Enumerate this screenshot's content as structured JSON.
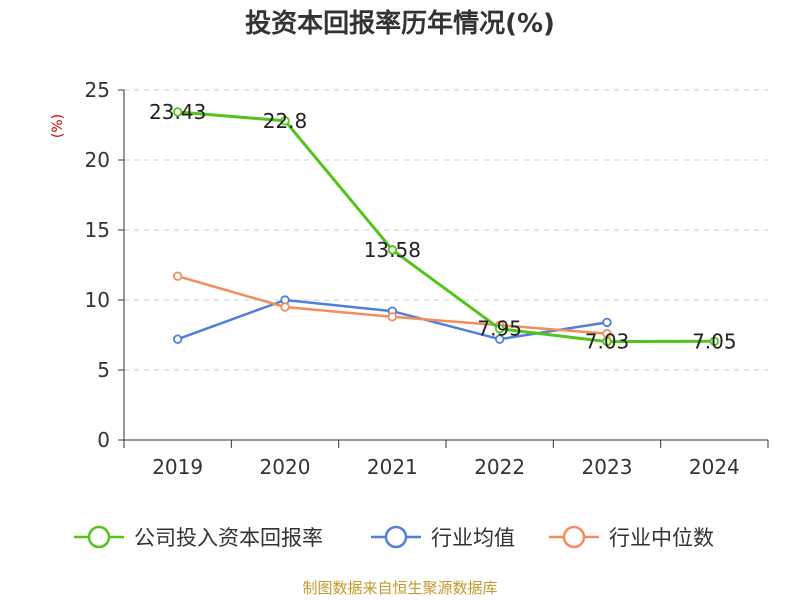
{
  "chart_data": {
    "type": "line",
    "title": "投资本回报率历年情况(%)",
    "xlabel": "",
    "ylabel": "(%)",
    "categories": [
      "2019",
      "2020",
      "2021",
      "2022",
      "2023",
      "2024"
    ],
    "ylim": [
      0,
      25
    ],
    "yticks": [
      0,
      5,
      10,
      15,
      20,
      25
    ],
    "grid": true,
    "legend_position": "bottom",
    "series": [
      {
        "name": "公司投入资本回报率",
        "color": "#52c41a",
        "values": [
          23.43,
          22.8,
          13.58,
          7.95,
          7.03,
          7.05
        ],
        "labels": [
          "23.43",
          "22.8",
          "13.58",
          "7.95",
          "7.03",
          "7.05"
        ],
        "show_markers": [
          true,
          true,
          true,
          true,
          true,
          true
        ]
      },
      {
        "name": "行业均值",
        "color": "#4f7fd9",
        "values": [
          7.2,
          10.0,
          9.2,
          7.2,
          8.4,
          null
        ],
        "labels": null,
        "show_markers": [
          true,
          true,
          true,
          true,
          true,
          false
        ]
      },
      {
        "name": "行业中位数",
        "color": "#f48d5c",
        "values": [
          11.7,
          9.5,
          8.8,
          8.2,
          7.6,
          null
        ],
        "labels": null,
        "show_markers": [
          true,
          true,
          true,
          true,
          true,
          false
        ]
      }
    ],
    "source": "制图数据来自恒生聚源数据库"
  }
}
